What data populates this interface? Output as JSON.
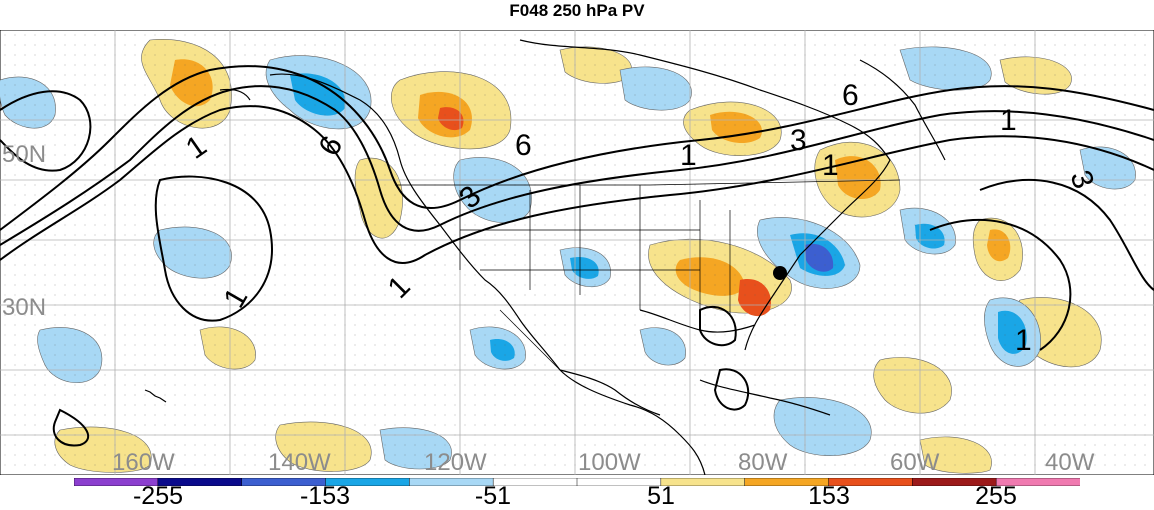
{
  "title": "F048 250 hPa PV",
  "longitude_labels": [
    "160W",
    "140W",
    "120W",
    "100W",
    "80W",
    "60W",
    "40W"
  ],
  "latitude_labels": [
    "50N",
    "30N"
  ],
  "contour_labels": [
    "1",
    "3",
    "6"
  ],
  "colorbar": {
    "labels": [
      "-255",
      "-153",
      "-51",
      "51",
      "153",
      "255"
    ],
    "colors": [
      "#8c3fcf",
      "#0a0a8c",
      "#3c5fd0",
      "#1aa6e6",
      "#a8d8f5",
      "#ffffff",
      "#ffffff",
      "#f7e38c",
      "#f5a623",
      "#e8501c",
      "#9c1a1a",
      "#f07ab0"
    ]
  },
  "colors": {
    "positive_light": "#f7e38c",
    "positive_mid": "#f5a623",
    "positive_strong": "#e8501c",
    "negative_light": "#a8d8f5",
    "negative_mid": "#1aa6e6",
    "negative_strong": "#3c5fd0"
  }
}
